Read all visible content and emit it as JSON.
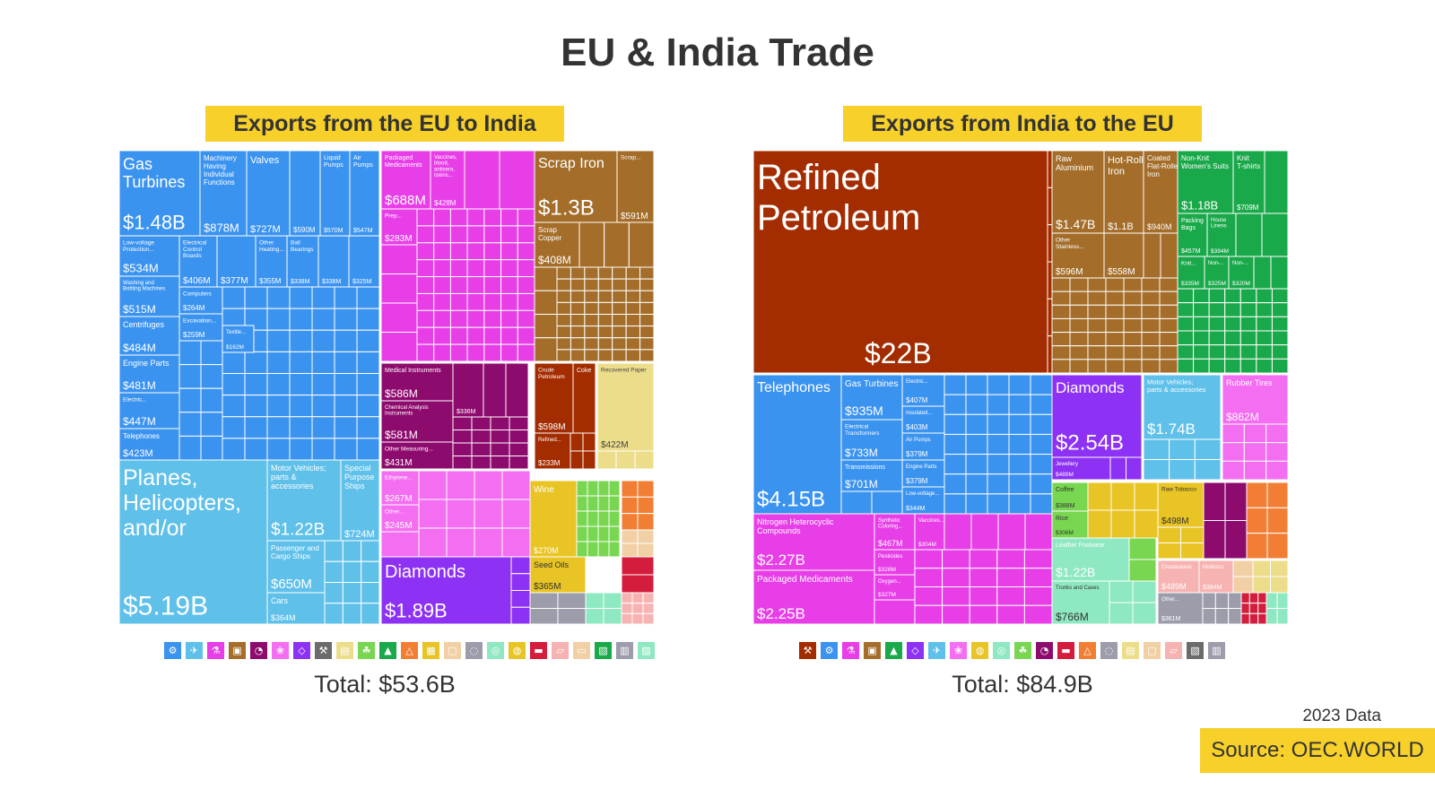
{
  "title": "EU & India Trade",
  "data_year": "2023 Data",
  "source": "Source: OEC.WORLD",
  "colors": {
    "machines": "#3b93f0",
    "transportation": "#5fc0ea",
    "chemicals": "#e83ee8",
    "metals": "#a46e2a",
    "instruments": "#8e0b6e",
    "minerals": "#a32c00",
    "precious_metals": "#8d32f5",
    "plastics": "#f36ef0",
    "paper": "#ecdd8a",
    "foodstuffs": "#e8c424",
    "vegetable": "#78d651",
    "textiles": "#1aa94a",
    "animal_products": "#f7b3b2",
    "stone": "#f1d0a5",
    "miscellaneous": "#9c9cab",
    "weapons": "#6b6b6b",
    "wood": "#f27e33",
    "animal_hides": "#d41c3c",
    "footwear": "#8ee8c1"
  },
  "chart_data": [
    {
      "type": "treemap",
      "title": "Exports from the EU to India",
      "total": "Total: $53.6B",
      "items": [
        {
          "name": "Planes, Helicopters, and/or Spacecraft",
          "value": "$5.19B",
          "category": "transportation"
        },
        {
          "name": "Gas Turbines",
          "value": "$1.48B",
          "category": "machines"
        },
        {
          "name": "Machinery Having Individual Functions",
          "value": "$878M",
          "category": "machines"
        },
        {
          "name": "Valves",
          "value": "$727M",
          "category": "machines"
        },
        {
          "name": "",
          "value": "$590M",
          "category": "machines"
        },
        {
          "name": "Liquid Pumps",
          "value": "$570M",
          "category": "machines"
        },
        {
          "name": "Air Pumps",
          "value": "$547M",
          "category": "machines"
        },
        {
          "name": "Low-voltage Protection...",
          "value": "$534M",
          "category": "machines"
        },
        {
          "name": "Electrical Control Boards",
          "value": "$406M",
          "category": "machines"
        },
        {
          "name": "",
          "value": "$377M",
          "category": "machines"
        },
        {
          "name": "Other Heating...",
          "value": "$355M",
          "category": "machines"
        },
        {
          "name": "Ball Bearings",
          "value": "$338M",
          "category": "machines"
        },
        {
          "name": "",
          "value": "$338M",
          "category": "machines"
        },
        {
          "name": "",
          "value": "$325M",
          "category": "machines"
        },
        {
          "name": "Washing and Bottling Machines",
          "value": "$515M",
          "category": "machines"
        },
        {
          "name": "Computers",
          "value": "$264M",
          "category": "machines"
        },
        {
          "name": "Centrifuges",
          "value": "$484M",
          "category": "machines"
        },
        {
          "name": "Excavation...",
          "value": "$259M",
          "category": "machines"
        },
        {
          "name": "Textile...",
          "value": "$162M",
          "category": "machines"
        },
        {
          "name": "Engine Parts",
          "value": "$481M",
          "category": "machines"
        },
        {
          "name": "Electric...",
          "value": "$447M",
          "category": "machines"
        },
        {
          "name": "Telephones",
          "value": "$423M",
          "category": "machines"
        },
        {
          "name": "Packaged Medicaments",
          "value": "$688M",
          "category": "chemicals"
        },
        {
          "name": "Vaccines, blood, antisera, toxins...",
          "value": "$428M",
          "category": "chemicals"
        },
        {
          "name": "Prep...",
          "value": "$283M",
          "category": "chemicals"
        },
        {
          "name": "Scrap Iron",
          "value": "$1.3B",
          "category": "metals"
        },
        {
          "name": "Scrap...",
          "value": "$591M",
          "category": "metals"
        },
        {
          "name": "Scrap Copper",
          "value": "$408M",
          "category": "metals"
        },
        {
          "name": "Medical Instruments",
          "value": "$586M",
          "category": "instruments"
        },
        {
          "name": "Chemical Analysis Instruments",
          "value": "$581M",
          "category": "instruments"
        },
        {
          "name": "Other Measuring...",
          "value": "$431M",
          "category": "instruments"
        },
        {
          "name": "",
          "value": "$336M",
          "category": "instruments"
        },
        {
          "name": "Crude Petroleum",
          "value": "$598M",
          "category": "minerals"
        },
        {
          "name": "Coke",
          "value": "",
          "category": "minerals"
        },
        {
          "name": "Refined...",
          "value": "$233M",
          "category": "minerals"
        },
        {
          "name": "Recovered Paper",
          "value": "$422M",
          "category": "paper"
        },
        {
          "name": "Motor Vehicles; parts & accessories",
          "value": "$1.22B",
          "category": "transportation"
        },
        {
          "name": "Special Purpose Ships",
          "value": "$724M",
          "category": "transportation"
        },
        {
          "name": "Passenger and Cargo Ships",
          "value": "$650M",
          "category": "transportation"
        },
        {
          "name": "Cars",
          "value": "$364M",
          "category": "transportation"
        },
        {
          "name": "Diamonds",
          "value": "$1.89B",
          "category": "precious_metals"
        },
        {
          "name": "Ethylene...",
          "value": "$267M",
          "category": "plastics"
        },
        {
          "name": "Other...",
          "value": "$245M",
          "category": "plastics"
        },
        {
          "name": "Wine",
          "value": "$270M",
          "category": "foodstuffs"
        },
        {
          "name": "Seed Oils",
          "value": "$365M",
          "category": "foodstuffs"
        }
      ]
    },
    {
      "type": "treemap",
      "title": "Exports from India to the EU",
      "total": "Total: $84.9B",
      "items": [
        {
          "name": "Refined Petroleum",
          "value": "$22B",
          "category": "minerals"
        },
        {
          "name": "Raw Aluminium",
          "value": "$1.47B",
          "category": "metals"
        },
        {
          "name": "Hot-Rolled Iron",
          "value": "$1.1B",
          "category": "metals"
        },
        {
          "name": "Coated Flat-Rolled Iron",
          "value": "$940M",
          "category": "metals"
        },
        {
          "name": "Other Stainless...",
          "value": "$596M",
          "category": "metals"
        },
        {
          "name": "",
          "value": "$558M",
          "category": "metals"
        },
        {
          "name": "Non-Knit Women's Suits",
          "value": "$1.18B",
          "category": "textiles"
        },
        {
          "name": "Knit T-shirts",
          "value": "$709M",
          "category": "textiles"
        },
        {
          "name": "Packing Bags",
          "value": "$457M",
          "category": "textiles"
        },
        {
          "name": "House Linens",
          "value": "$394M",
          "category": "textiles"
        },
        {
          "name": "Knit...",
          "value": "$335M",
          "category": "textiles"
        },
        {
          "name": "Non-...",
          "value": "$325M",
          "category": "textiles"
        },
        {
          "name": "Non-...",
          "value": "$320M",
          "category": "textiles"
        },
        {
          "name": "Telephones",
          "value": "$4.15B",
          "category": "machines"
        },
        {
          "name": "Gas Turbines",
          "value": "$935M",
          "category": "machines"
        },
        {
          "name": "Electrical Transformers",
          "value": "$733M",
          "category": "machines"
        },
        {
          "name": "Transmissions",
          "value": "$701M",
          "category": "machines"
        },
        {
          "name": "Electric...",
          "value": "$407M",
          "category": "machines"
        },
        {
          "name": "Insulated...",
          "value": "$403M",
          "category": "machines"
        },
        {
          "name": "Air Pumps",
          "value": "$379M",
          "category": "machines"
        },
        {
          "name": "Engine Parts",
          "value": "$379M",
          "category": "machines"
        },
        {
          "name": "Low-voltage...",
          "value": "$344M",
          "category": "machines"
        },
        {
          "name": "Diamonds",
          "value": "$2.54B",
          "category": "precious_metals"
        },
        {
          "name": "Jewellery",
          "value": "$489M",
          "category": "precious_metals"
        },
        {
          "name": "Motor Vehicles; parts & accessories",
          "value": "$1.74B",
          "category": "transportation"
        },
        {
          "name": "Rubber Tires",
          "value": "$862M",
          "category": "plastics"
        },
        {
          "name": "Nitrogen Heterocyclic Compounds",
          "value": "$2.27B",
          "category": "chemicals"
        },
        {
          "name": "Packaged Medicaments",
          "value": "$2.25B",
          "category": "chemicals"
        },
        {
          "name": "Synthetic Coloring...",
          "value": "$467M",
          "category": "chemicals"
        },
        {
          "name": "Pesticides",
          "value": "$328M",
          "category": "chemicals"
        },
        {
          "name": "Oxygen...",
          "value": "$327M",
          "category": "chemicals"
        },
        {
          "name": "Vaccines...",
          "value": "$304M",
          "category": "chemicals"
        },
        {
          "name": "Coffee",
          "value": "$388M",
          "category": "vegetable"
        },
        {
          "name": "Rice",
          "value": "$306M",
          "category": "vegetable"
        },
        {
          "name": "Leather Footwear",
          "value": "$1.22B",
          "category": "footwear"
        },
        {
          "name": "Trunks and Cases",
          "value": "$766M",
          "category": "footwear"
        },
        {
          "name": "Raw Tobacco",
          "value": "$498M",
          "category": "foodstuffs"
        },
        {
          "name": "Crustaceans",
          "value": "$489M",
          "category": "animal_products"
        },
        {
          "name": "Molluscs",
          "value": "$384M",
          "category": "animal_products"
        },
        {
          "name": "Other...",
          "value": "$361M",
          "category": "miscellaneous"
        }
      ]
    }
  ]
}
